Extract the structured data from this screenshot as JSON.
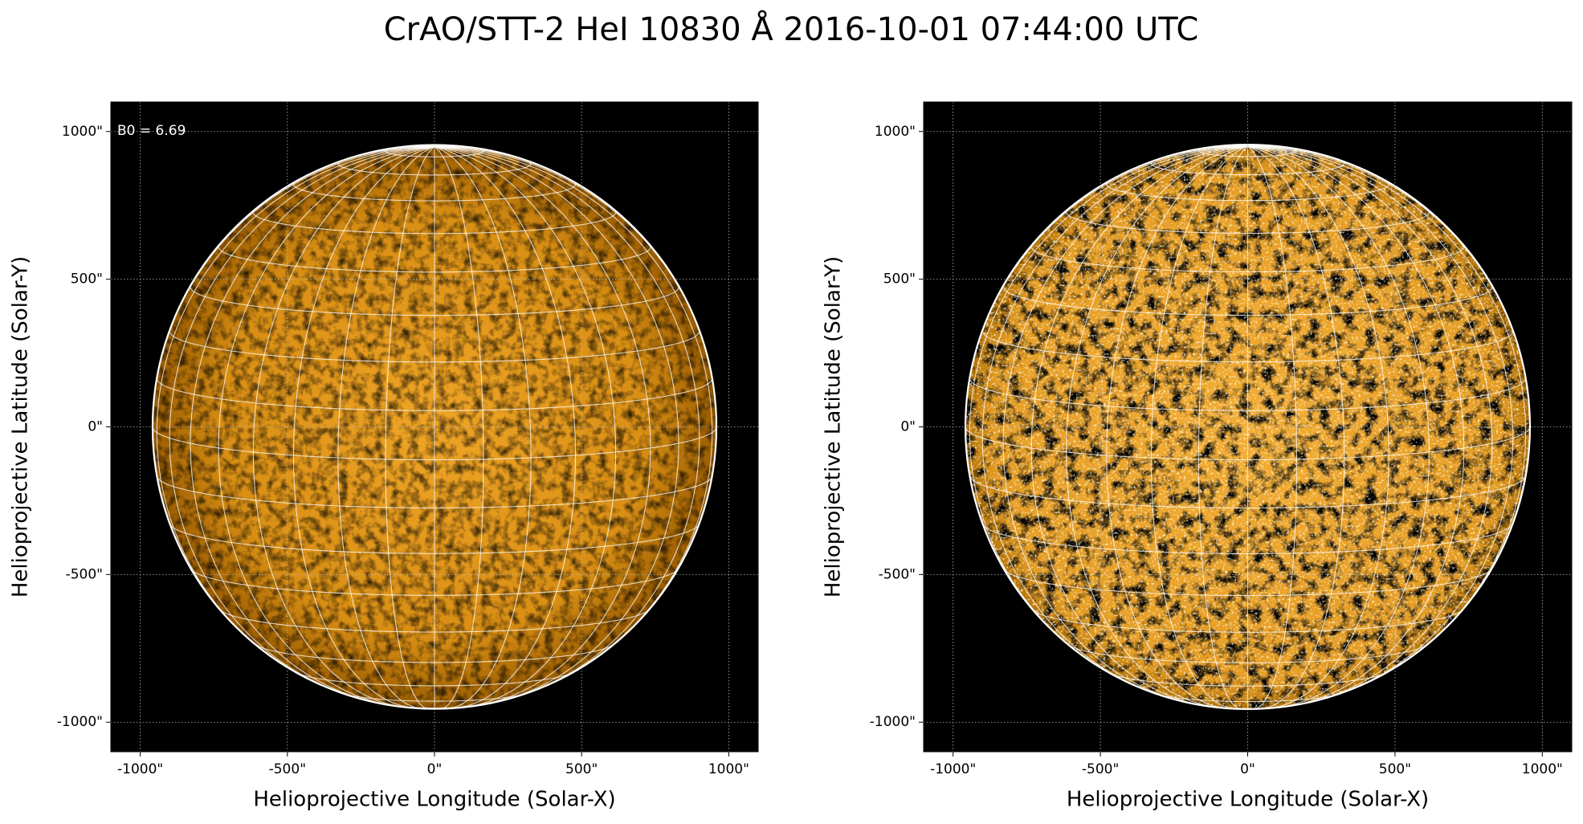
{
  "title": "CrAO/STT-2 HeI 10830 Å 2016-10-01 07:44:00 UTC",
  "chart_data": [
    {
      "type": "image",
      "xlabel": "Helioprojective Longitude (Solar-X)",
      "ylabel": "Helioprojective Latitude (Solar-Y)",
      "annotation": "B0 = 6.69",
      "xlim": [
        -1100,
        1100
      ],
      "ylim": [
        -1100,
        1100
      ],
      "xticks": [
        {
          "value": -1000,
          "label": "-1000\""
        },
        {
          "value": -500,
          "label": "-500\""
        },
        {
          "value": 0,
          "label": "0\""
        },
        {
          "value": 500,
          "label": "500\""
        },
        {
          "value": 1000,
          "label": "1000\""
        }
      ],
      "yticks": [
        {
          "value": -1000,
          "label": "-1000\""
        },
        {
          "value": -500,
          "label": "-500\""
        },
        {
          "value": 0,
          "label": "0\""
        },
        {
          "value": 500,
          "label": "500\""
        },
        {
          "value": 1000,
          "label": "1000\""
        }
      ],
      "grid": true
    },
    {
      "type": "image",
      "xlabel": "Helioprojective Longitude (Solar-X)",
      "ylabel": "Helioprojective Latitude (Solar-Y)",
      "xlim": [
        -1100,
        1100
      ],
      "ylim": [
        -1100,
        1100
      ],
      "xticks": [
        {
          "value": -1000,
          "label": "-1000\""
        },
        {
          "value": -500,
          "label": "-500\""
        },
        {
          "value": 0,
          "label": "0\""
        },
        {
          "value": 500,
          "label": "500\""
        },
        {
          "value": 1000,
          "label": "1000\""
        }
      ],
      "yticks": [
        {
          "value": -1000,
          "label": "-1000\""
        },
        {
          "value": -500,
          "label": "-500\""
        },
        {
          "value": 0,
          "label": "0\""
        },
        {
          "value": 500,
          "label": "500\""
        },
        {
          "value": 1000,
          "label": "1000\""
        }
      ],
      "grid": true
    }
  ]
}
